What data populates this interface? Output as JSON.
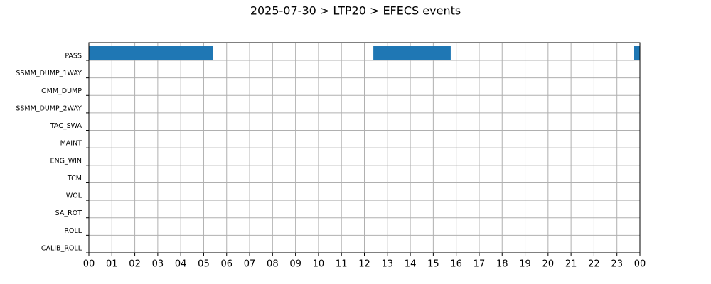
{
  "chart_data": {
    "type": "timeline",
    "title": "2025-07-30 > LTP20 > EFECS events",
    "categories": [
      "PASS",
      "SSMM_DUMP_1WAY",
      "OMM_DUMP",
      "SSMM_DUMP_2WAY",
      "TAC_SWA",
      "MAINT",
      "ENG_WIN",
      "TCM",
      "WOL",
      "SA_ROT",
      "ROLL",
      "CALIB_ROLL"
    ],
    "color": "#1f77b4",
    "events": [
      {
        "category": 0,
        "start": 0,
        "end": 5.39
      },
      {
        "category": 0,
        "start": 12.39,
        "end": 15.76
      },
      {
        "category": 0,
        "start": 23.75,
        "end": 24
      }
    ],
    "xlim": [
      0,
      24
    ],
    "xticks": [
      {
        "value": 0,
        "label": "00"
      },
      {
        "value": 1,
        "label": "01"
      },
      {
        "value": 2,
        "label": "02"
      },
      {
        "value": 3,
        "label": "03"
      },
      {
        "value": 4,
        "label": "04"
      },
      {
        "value": 5,
        "label": "05"
      },
      {
        "value": 6,
        "label": "06"
      },
      {
        "value": 7,
        "label": "07"
      },
      {
        "value": 8,
        "label": "08"
      },
      {
        "value": 9,
        "label": "09"
      },
      {
        "value": 10,
        "label": "10"
      },
      {
        "value": 11,
        "label": "11"
      },
      {
        "value": 12,
        "label": "12"
      },
      {
        "value": 13,
        "label": "13"
      },
      {
        "value": 14,
        "label": "14"
      },
      {
        "value": 15,
        "label": "15"
      },
      {
        "value": 16,
        "label": "16"
      },
      {
        "value": 17,
        "label": "17"
      },
      {
        "value": 18,
        "label": "18"
      },
      {
        "value": 19,
        "label": "19"
      },
      {
        "value": 20,
        "label": "20"
      },
      {
        "value": 21,
        "label": "21"
      },
      {
        "value": 22,
        "label": "22"
      },
      {
        "value": 23,
        "label": "23"
      },
      {
        "value": 24,
        "label": "00"
      }
    ],
    "grid": true
  }
}
